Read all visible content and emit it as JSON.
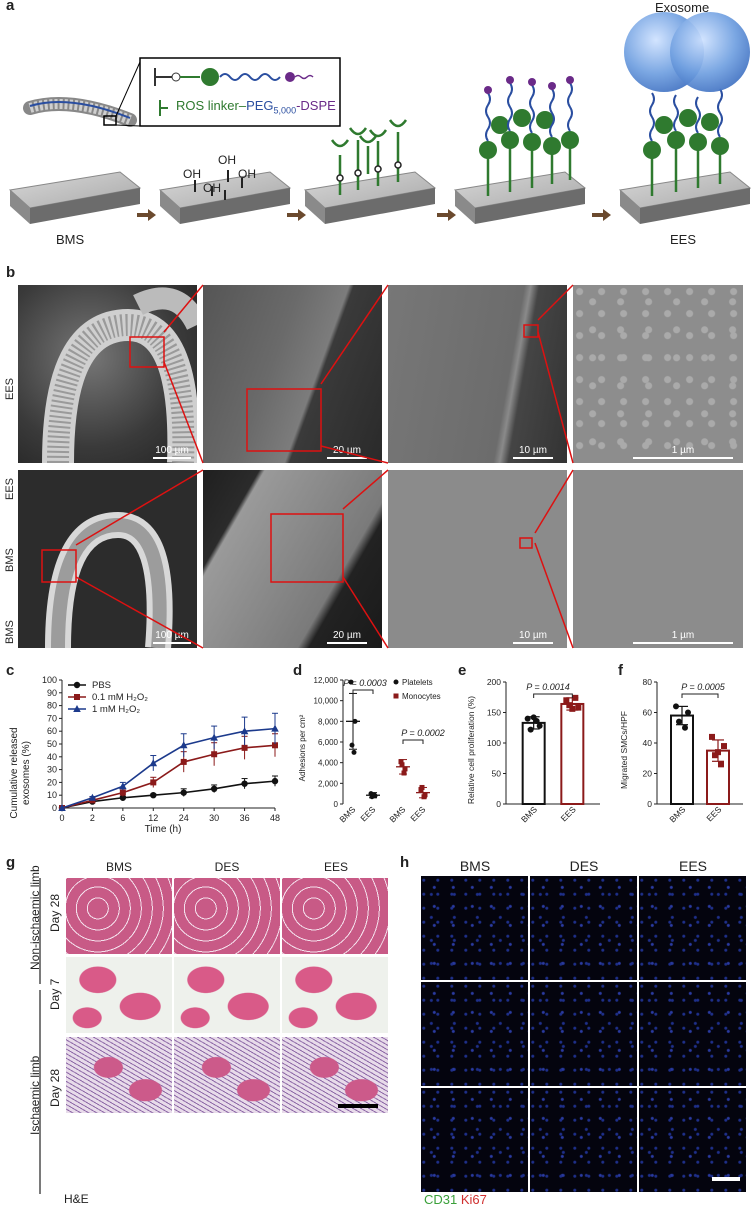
{
  "panel_letters": [
    "a",
    "b",
    "c",
    "d",
    "e",
    "f",
    "g",
    "h"
  ],
  "panel_a": {
    "exosome_label": "Exosome",
    "bms_label": "BMS",
    "ees_label": "EES",
    "oh": "OH",
    "legend_line": {
      "prefix": "ROS linker–",
      "peg": "PEG",
      "peg_sub": "5,000",
      "suffix": "-DSPE"
    },
    "colors": {
      "linker": "#2f7a2f",
      "peg": "#2a4ea0",
      "dspe": "#6a2a88",
      "exosome": "#5a8fd8"
    }
  },
  "panel_b": {
    "row_labels": {
      "top": "EES",
      "mid": "EES",
      "bms": "BMS",
      "bottom": "BMS"
    },
    "scalebars_top": [
      "100 µm",
      "20 µm",
      "10 µm",
      "1 µm"
    ],
    "scalebars_bottom": [
      "100 µm",
      "20 µm",
      "10 µm",
      "1 µm"
    ]
  },
  "panel_c": {
    "ylabel_line1": "Cumulative released",
    "ylabel_line2": "exosomes (%)",
    "xlabel": "Time (h)",
    "legend": [
      "PBS",
      "0.1 mM H₂O₂",
      "1 mM H₂O₂"
    ]
  },
  "panel_d": {
    "ylabel": "Adhesions per cm²",
    "legend": [
      "Platelets",
      "Monocytes"
    ],
    "p1": "P = 0.0003",
    "p2": "P = 0.0002",
    "xticks": [
      "BMS",
      "EES",
      "BMS",
      "EES"
    ]
  },
  "panel_e": {
    "ylabel": "Relative cell proliferation (%)",
    "p": "P = 0.0014",
    "xticks": [
      "BMS",
      "EES"
    ]
  },
  "panel_f": {
    "ylabel": "Migrated SMCs/HPF",
    "p": "P = 0.0005",
    "xticks": [
      "BMS",
      "EES"
    ]
  },
  "panel_g": {
    "columns": [
      "BMS",
      "DES",
      "EES"
    ],
    "group_labels": [
      "Non-ischaemic limb",
      "Ischaemic limb"
    ],
    "row_labels": [
      "Day 28",
      "Day 7",
      "Day 28"
    ],
    "stain": "H&E"
  },
  "panel_h": {
    "columns": [
      "BMS",
      "DES",
      "EES"
    ],
    "stain_green": "CD31",
    "stain_red": "Ki67",
    "green": "#3aa03a",
    "red": "#d03030"
  },
  "chart_data": [
    {
      "type": "line",
      "title": "",
      "xlabel": "Time (h)",
      "ylabel": "Cumulative released exosomes (%)",
      "x": [
        0,
        2,
        6,
        12,
        24,
        30,
        36,
        48
      ],
      "xticks": [
        "0",
        "2",
        "6",
        "12",
        "24",
        "30",
        "36",
        "48"
      ],
      "ylim": [
        0,
        100
      ],
      "yticks": [
        0,
        10,
        20,
        30,
        40,
        50,
        60,
        70,
        80,
        90,
        100
      ],
      "series": [
        {
          "name": "PBS",
          "color": "#111111",
          "marker": "circle",
          "values": [
            0,
            5,
            8,
            10,
            12,
            15,
            19,
            21
          ],
          "err": [
            0,
            1,
            1,
            1,
            3,
            3,
            4,
            4
          ]
        },
        {
          "name": "0.1 mM H₂O₂",
          "color": "#8b1a1a",
          "marker": "square",
          "values": [
            0,
            6,
            12,
            20,
            36,
            42,
            47,
            49
          ],
          "err": [
            0,
            1,
            3,
            4,
            8,
            9,
            9,
            9
          ]
        },
        {
          "name": "1 mM H₂O₂",
          "color": "#1c3a8c",
          "marker": "triangle",
          "values": [
            0,
            8,
            17,
            35,
            49,
            55,
            60,
            62
          ],
          "err": [
            0,
            1,
            3,
            6,
            9,
            9,
            11,
            12
          ]
        }
      ]
    },
    {
      "type": "scatter",
      "ylabel": "Adhesions per cm²",
      "ylim": [
        0,
        12000
      ],
      "yticks": [
        0,
        2000,
        4000,
        6000,
        8000,
        10000,
        12000
      ],
      "yticklabels": [
        "0",
        "2,000",
        "4,000",
        "6,000",
        "8,000",
        "10,000",
        "12,000"
      ],
      "categories": [
        "BMS",
        "EES",
        "BMS",
        "EES"
      ],
      "groups": [
        {
          "name": "Platelets",
          "color": "#111111",
          "mean": [
            8000,
            850
          ],
          "sd": [
            2700,
            250
          ],
          "points": [
            [
              11800,
              8000,
              5700,
              5000
            ],
            [
              1000,
              800,
              700,
              900
            ]
          ]
        },
        {
          "name": "Monocytes",
          "color": "#8b1a1a",
          "mean": [
            3600,
            1100
          ],
          "sd": [
            700,
            500
          ],
          "points": [
            [
              4100,
              3400,
              3800,
              3000
            ],
            [
              1400,
              900,
              1600,
              700
            ]
          ]
        }
      ]
    },
    {
      "type": "bar",
      "ylabel": "Relative cell proliferation (%)",
      "categories": [
        "BMS",
        "EES"
      ],
      "values": [
        133,
        164
      ],
      "err": [
        10,
        10
      ],
      "ylim": [
        0,
        200
      ],
      "yticks": [
        0,
        50,
        100,
        150,
        200
      ],
      "points": [
        [
          140,
          128,
          122,
          136,
          142
        ],
        [
          170,
          158,
          162,
          174,
          156
        ]
      ],
      "colors": [
        "#111111",
        "#8b1a1a"
      ]
    },
    {
      "type": "bar",
      "ylabel": "Migrated SMCs/HPF",
      "categories": [
        "BMS",
        "EES"
      ],
      "values": [
        58,
        35
      ],
      "err": [
        6,
        7
      ],
      "ylim": [
        0,
        80
      ],
      "yticks": [
        0,
        20,
        40,
        60,
        80
      ],
      "points": [
        [
          64,
          60,
          54,
          50
        ],
        [
          44,
          38,
          32,
          26,
          34
        ]
      ],
      "colors": [
        "#111111",
        "#8b1a1a"
      ]
    }
  ]
}
